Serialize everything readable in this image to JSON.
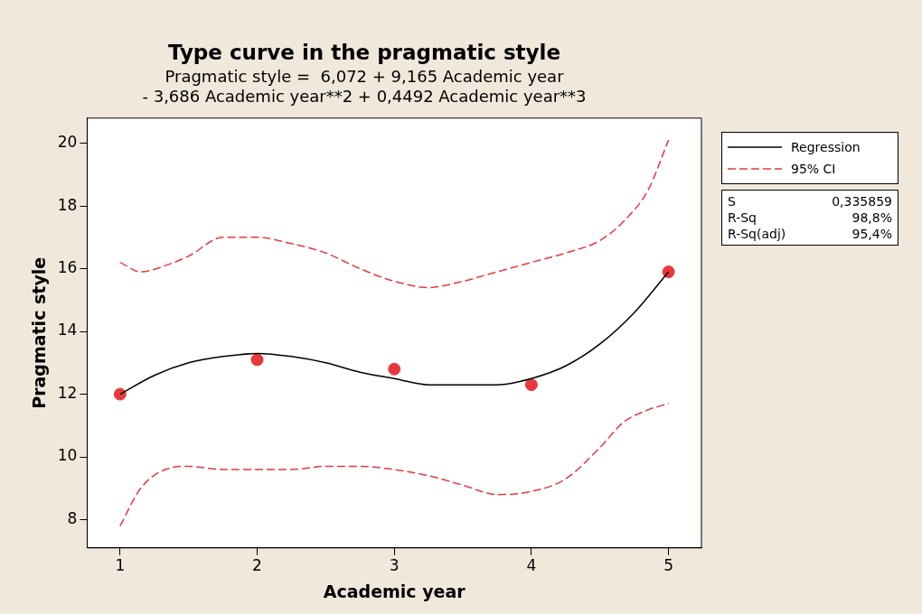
{
  "chart_data": {
    "type": "line",
    "title": "Type curve in the pragmatic style",
    "subtitle": "Pragmatic style =  6,072 + 9,165 Academic year\n- 3,686 Academic year**2 + 0,4492 Academic year**3",
    "xlabel": "Academic year",
    "ylabel": "Pragmatic style",
    "xlim": [
      0.76,
      5.24
    ],
    "xticks": [
      1,
      2,
      3,
      4,
      5
    ],
    "ylim": [
      7.1,
      20.8
    ],
    "yticks": [
      8,
      10,
      12,
      14,
      16,
      18,
      20
    ],
    "grid": false,
    "legend": "right",
    "series": [
      {
        "name": "Regression",
        "color": "#000000",
        "line_style": "solid",
        "marker": "none",
        "x": [
          1,
          1.25,
          1.5,
          1.75,
          2,
          2.25,
          2.5,
          2.75,
          3,
          3.25,
          3.5,
          3.75,
          4,
          4.25,
          4.5,
          4.75,
          5
        ],
        "values": [
          12.0,
          12.6,
          13.0,
          13.2,
          13.3,
          13.2,
          13.0,
          12.7,
          12.5,
          12.3,
          12.3,
          12.3,
          12.5,
          12.9,
          13.6,
          14.6,
          15.9
        ]
      },
      {
        "name": "95% CI",
        "color": "#e8383d",
        "line_style": "dashed",
        "marker": "none",
        "x": [
          1,
          1.15,
          1.33,
          1.5,
          1.75,
          2,
          2.25,
          2.5,
          2.75,
          3,
          3.25,
          3.5,
          3.75,
          4,
          4.25,
          4.5,
          4.67,
          4.85,
          5
        ],
        "values": [
          16.2,
          15.9,
          16.1,
          16.4,
          17.0,
          17.0,
          16.8,
          16.5,
          16.0,
          15.6,
          15.4,
          15.6,
          15.9,
          16.2,
          16.5,
          16.9,
          17.5,
          18.5,
          20.1
        ]
      },
      {
        "color": "#e8383d",
        "line_style": "dashed",
        "marker": "none",
        "x": [
          1,
          1.15,
          1.33,
          1.5,
          1.75,
          2,
          2.25,
          2.5,
          2.75,
          3,
          3.25,
          3.5,
          3.75,
          4,
          4.25,
          4.5,
          4.67,
          4.85,
          5
        ],
        "values": [
          7.8,
          9.0,
          9.6,
          9.7,
          9.6,
          9.6,
          9.6,
          9.7,
          9.7,
          9.6,
          9.4,
          9.1,
          8.8,
          8.9,
          9.3,
          10.3,
          11.1,
          11.5,
          11.7
        ]
      },
      {
        "type": "scatter",
        "color": "#e8383d",
        "marker": "circle",
        "x": [
          1,
          2,
          3,
          4,
          5
        ],
        "values": [
          12.0,
          13.1,
          12.8,
          12.3,
          15.9
        ]
      }
    ],
    "annotations": [
      "S",
      "0,335859",
      "R-Sq",
      "98,8%",
      "R-Sq(adj)",
      "95,4%"
    ]
  }
}
